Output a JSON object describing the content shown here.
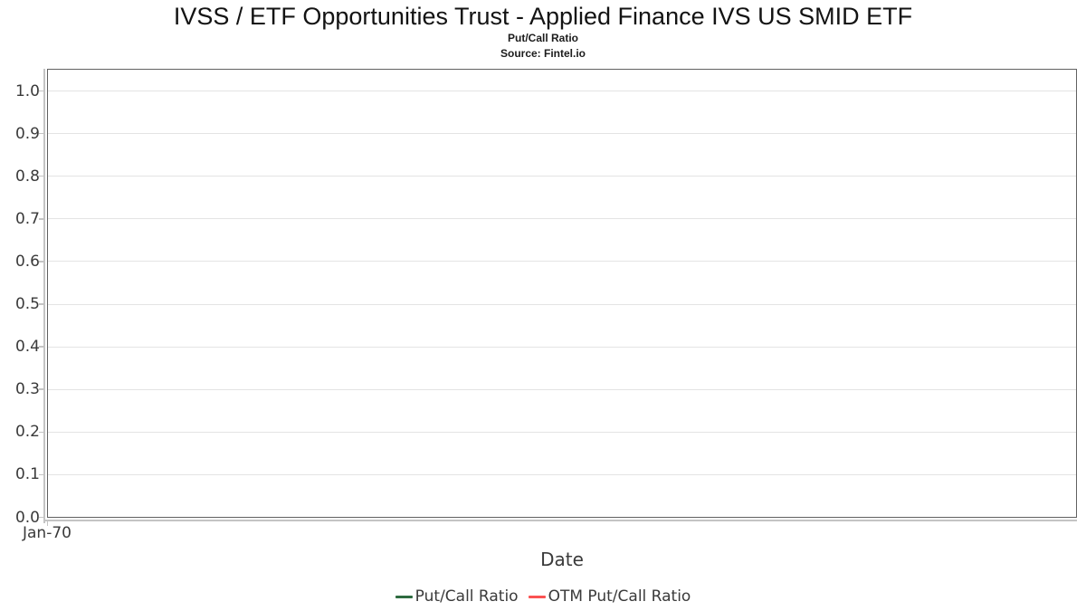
{
  "header": {
    "title": "IVSS / ETF Opportunities Trust - Applied Finance IVS US SMID ETF",
    "subtitle": "Put/Call Ratio",
    "source": "Source: Fintel.io"
  },
  "chart_data": {
    "type": "line",
    "title": "IVSS / ETF Opportunities Trust - Applied Finance IVS US SMID ETF",
    "subtitle": "Put/Call Ratio",
    "source": "Source: Fintel.io",
    "xlabel": "Date",
    "ylabel": "",
    "ylim": [
      0.0,
      1.05
    ],
    "yticks": [
      0.0,
      0.1,
      0.2,
      0.3,
      0.4,
      0.5,
      0.6,
      0.7,
      0.8,
      0.9,
      1.0
    ],
    "ytick_labels": [
      "0.0",
      "0.1",
      "0.2",
      "0.3",
      "0.4",
      "0.5",
      "0.6",
      "0.7",
      "0.8",
      "0.9",
      "1.0"
    ],
    "xtick_labels": [
      "Jan-70"
    ],
    "grid": true,
    "legend_position": "bottom",
    "series": [
      {
        "name": "Put/Call Ratio",
        "color": "#2e6b40",
        "x": [],
        "values": []
      },
      {
        "name": "OTM Put/Call Ratio",
        "color": "#fa5252",
        "x": [],
        "values": []
      }
    ]
  },
  "colors": {
    "plot_border": "#616161",
    "gridline": "#e4e4e4",
    "axis_line": "#c4c4c4",
    "title_text": "#131313",
    "tick_text": "#3a3a3a"
  }
}
